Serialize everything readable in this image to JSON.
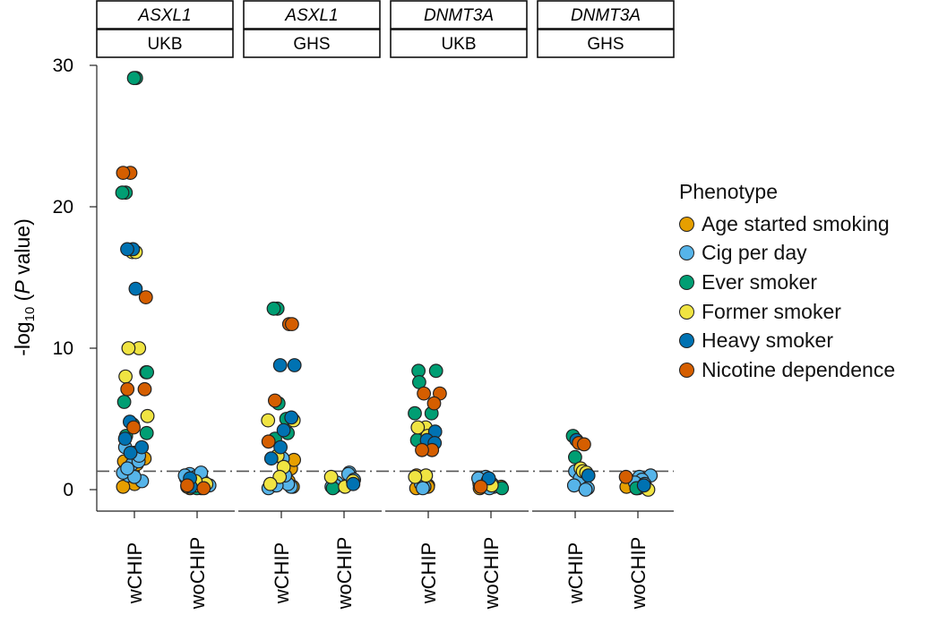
{
  "chart_data": {
    "type": "scatter",
    "ylabel": "-log10 (P value)",
    "ylabel_parts": {
      "prefix": "-log",
      "sub": "10",
      "mid": " (",
      "italic": "P",
      "suffix": " value)"
    },
    "ylim": [
      0,
      30
    ],
    "yticks": [
      0,
      10,
      20,
      30
    ],
    "significance_line": 1.3,
    "grid": false,
    "legend_position": "right",
    "legend_title": "Phenotype",
    "phenotypes": [
      {
        "name": "Age started smoking",
        "color": "#E69F00"
      },
      {
        "name": "Cig per day",
        "color": "#56B4E9"
      },
      {
        "name": "Ever smoker",
        "color": "#009E73"
      },
      {
        "name": "Former smoker",
        "color": "#F0E442"
      },
      {
        "name": "Heavy smoker",
        "color": "#0072B2"
      },
      {
        "name": "Nicotine dependence",
        "color": "#D55E00"
      }
    ],
    "panels": [
      {
        "gene": "ASXL1",
        "cohort": "UKB",
        "categories": [
          "wCHIP",
          "woCHIP"
        ],
        "points": {
          "wCHIP": {
            "Age started smoking": [
              2.6,
              2.4,
              2.0,
              1.5,
              1.2,
              0.4,
              0.2,
              2.2,
              1.8
            ],
            "Cig per day": [
              1.8,
              1.0,
              0.6,
              2.0,
              1.2,
              0.9,
              1.5,
              2.4,
              3.0
            ],
            "Ever smoker": [
              29.1,
              29.1,
              21.0,
              21.0,
              8.3,
              8.3,
              6.2,
              4.6,
              4.0,
              3.8
            ],
            "Former smoker": [
              16.8,
              16.8,
              10.0,
              10.0,
              8.0,
              5.2
            ],
            "Heavy smoker": [
              17.0,
              17.0,
              14.2,
              4.8,
              3.6,
              3.0,
              2.6
            ],
            "Nicotine dependence": [
              22.4,
              22.4,
              13.6,
              7.1,
              7.1,
              4.4
            ]
          },
          "woCHIP": {
            "Age started smoking": [
              0.1,
              0.2,
              0.3,
              0.5,
              0.1,
              0.2
            ],
            "Cig per day": [
              1.1,
              0.9,
              0.8,
              1.0,
              0.5,
              0.7,
              1.2,
              0.3,
              0.4
            ],
            "Ever smoker": [
              0.2,
              0.1,
              0.3
            ],
            "Former smoker": [
              0.4,
              0.3,
              0.6
            ],
            "Heavy smoker": [
              0.2,
              0.8
            ],
            "Nicotine dependence": [
              0.1,
              0.3
            ]
          }
        }
      },
      {
        "gene": "ASXL1",
        "cohort": "GHS",
        "categories": [
          "wCHIP",
          "woCHIP"
        ],
        "points": {
          "wCHIP": {
            "Age started smoking": [
              0.3,
              0.6,
              1.5,
              2.1,
              0.2
            ],
            "Cig per day": [
              0.2,
              0.4,
              1.0,
              2.2,
              0.1,
              0.3
            ],
            "Ever smoker": [
              12.8,
              12.8,
              6.1,
              5.0,
              4.0,
              3.6
            ],
            "Former smoker": [
              4.9,
              4.9,
              2.4,
              1.6,
              0.9,
              0.4
            ],
            "Heavy smoker": [
              8.8,
              8.8,
              5.1,
              4.2,
              3.0,
              2.2
            ],
            "Nicotine dependence": [
              11.7,
              11.7,
              6.3,
              3.4
            ]
          },
          "woCHIP": {
            "Age started smoking": [
              0.2,
              0.5
            ],
            "Cig per day": [
              1.2,
              1.1,
              0.7,
              0.5,
              0.4,
              0.3,
              0.2
            ],
            "Ever smoker": [
              0.1
            ],
            "Former smoker": [
              0.9,
              0.2,
              0.6
            ],
            "Heavy smoker": [
              0.4
            ],
            "Nicotine dependence": []
          }
        }
      },
      {
        "gene": "DNMT3A",
        "cohort": "UKB",
        "categories": [
          "wCHIP",
          "woCHIP"
        ],
        "points": {
          "wCHIP": {
            "Age started smoking": [
              0.5,
              0.3,
              0.1,
              0.8,
              0.2,
              1.0
            ],
            "Cig per day": [
              0.2,
              0.4,
              0.1
            ],
            "Ever smoker": [
              8.4,
              8.4,
              7.6,
              5.4,
              5.4,
              3.5
            ],
            "Former smoker": [
              4.4,
              4.4,
              3.8,
              1.0,
              0.9
            ],
            "Heavy smoker": [
              4.1,
              3.5,
              3.3
            ],
            "Nicotine dependence": [
              6.8,
              6.8,
              6.1,
              2.8,
              2.8
            ]
          },
          "woCHIP": {
            "Age started smoking": [
              0.7,
              0.4,
              0.2,
              0.1,
              0.5,
              0.3
            ],
            "Cig per day": [
              0.9,
              0.8,
              0.2,
              0.1,
              0.6,
              0.4
            ],
            "Ever smoker": [
              0.1
            ],
            "Former smoker": [
              0.3
            ],
            "Heavy smoker": [
              0.8
            ],
            "Nicotine dependence": [
              0.2
            ]
          }
        }
      },
      {
        "gene": "DNMT3A",
        "cohort": "GHS",
        "categories": [
          "wCHIP",
          "woCHIP"
        ],
        "points": {
          "wCHIP": {
            "Age started smoking": [
              1.0,
              0.5
            ],
            "Cig per day": [
              1.3,
              1.1,
              0.8,
              0.3,
              0.1,
              0.0
            ],
            "Ever smoker": [
              3.8,
              2.3
            ],
            "Former smoker": [
              1.5,
              1.3,
              1.2
            ],
            "Heavy smoker": [
              3.5,
              1.0
            ],
            "Nicotine dependence": [
              3.3,
              3.2
            ]
          },
          "woCHIP": {
            "Age started smoking": [
              0.1,
              0.2
            ],
            "Cig per day": [
              1.0,
              0.9,
              0.7,
              0.5,
              0.4,
              0.2,
              0.1
            ],
            "Ever smoker": [
              0.1
            ],
            "Former smoker": [
              0.0
            ],
            "Heavy smoker": [
              0.3
            ],
            "Nicotine dependence": [
              0.9
            ]
          }
        }
      }
    ]
  }
}
